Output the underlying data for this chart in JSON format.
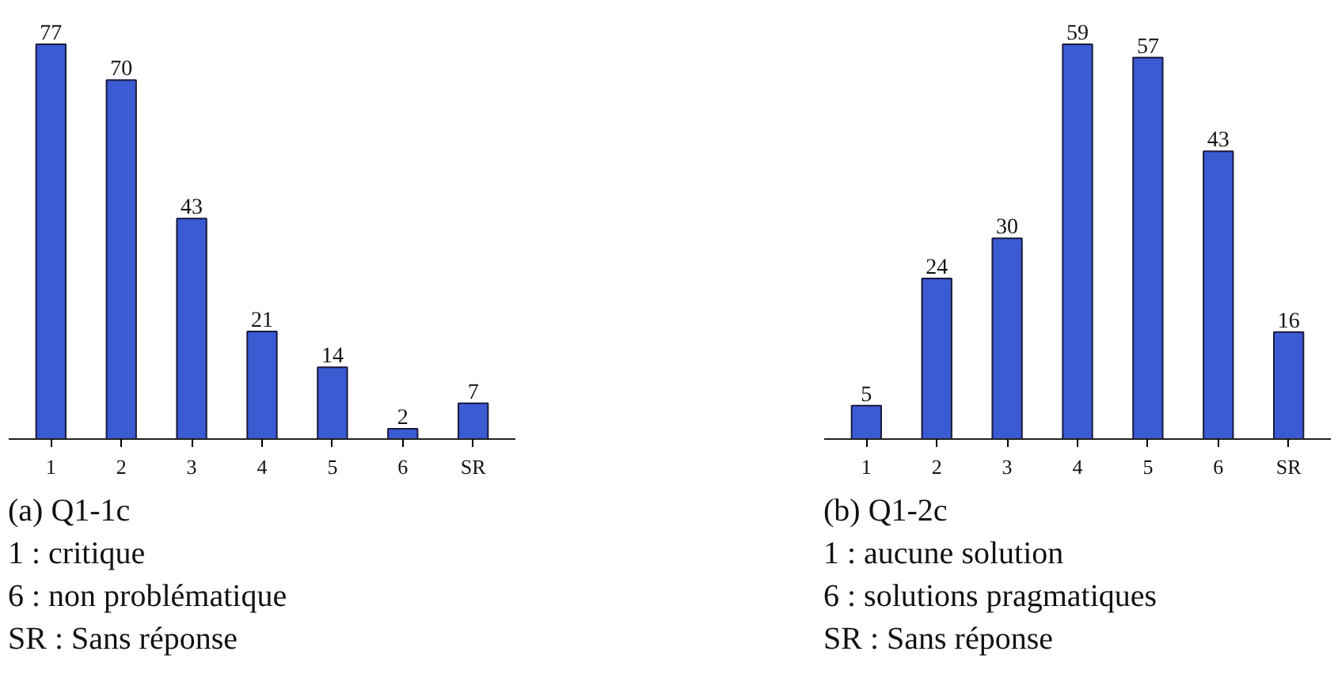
{
  "chart_data": [
    {
      "type": "bar",
      "categories": [
        "1",
        "2",
        "3",
        "4",
        "5",
        "6",
        "SR"
      ],
      "values": [
        77,
        70,
        43,
        21,
        14,
        2,
        7
      ],
      "color": "#3b5bd3",
      "data_labels": true,
      "annotations": [
        "(a) Q1-1c",
        "1 : critique",
        "6 : non problématique",
        "SR : Sans réponse"
      ]
    },
    {
      "type": "bar",
      "categories": [
        "1",
        "2",
        "3",
        "4",
        "5",
        "6",
        "SR"
      ],
      "values": [
        5,
        24,
        30,
        59,
        57,
        43,
        16
      ],
      "color": "#3b5bd3",
      "data_labels": true,
      "annotations": [
        "(b) Q1-2c",
        "1 : aucune solution",
        "6 : solutions pragmatiques",
        "SR : Sans réponse"
      ]
    }
  ]
}
